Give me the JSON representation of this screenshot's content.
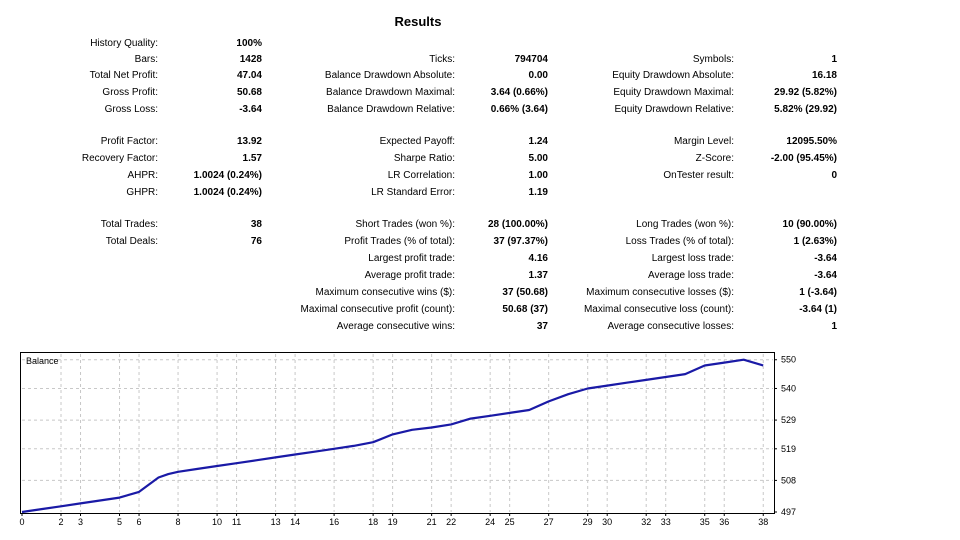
{
  "report": {
    "title": "Results",
    "rows": [
      {
        "top": 35,
        "cells": [
          {
            "label": "History Quality:",
            "value": "100%"
          },
          null,
          null
        ]
      },
      {
        "top": 51,
        "cells": [
          {
            "label": "Bars:",
            "value": "1428"
          },
          {
            "label": "Ticks:",
            "value": "794704"
          },
          {
            "label": "Symbols:",
            "value": "1"
          }
        ]
      },
      {
        "top": 67,
        "cells": [
          {
            "label": "Total Net Profit:",
            "value": "47.04"
          },
          {
            "label": "Balance Drawdown Absolute:",
            "value": "0.00"
          },
          {
            "label": "Equity Drawdown Absolute:",
            "value": "16.18"
          }
        ]
      },
      {
        "top": 84,
        "cells": [
          {
            "label": "Gross Profit:",
            "value": "50.68"
          },
          {
            "label": "Balance Drawdown Maximal:",
            "value": "3.64 (0.66%)"
          },
          {
            "label": "Equity Drawdown Maximal:",
            "value": "29.92 (5.82%)"
          }
        ]
      },
      {
        "top": 101,
        "cells": [
          {
            "label": "Gross Loss:",
            "value": "-3.64"
          },
          {
            "label": "Balance Drawdown Relative:",
            "value": "0.66% (3.64)"
          },
          {
            "label": "Equity Drawdown Relative:",
            "value": "5.82% (29.92)"
          }
        ]
      },
      {
        "top": 133,
        "cells": [
          {
            "label": "Profit Factor:",
            "value": "13.92"
          },
          {
            "label": "Expected Payoff:",
            "value": "1.24"
          },
          {
            "label": "Margin Level:",
            "value": "12095.50%"
          }
        ]
      },
      {
        "top": 150,
        "cells": [
          {
            "label": "Recovery Factor:",
            "value": "1.57"
          },
          {
            "label": "Sharpe Ratio:",
            "value": "5.00"
          },
          {
            "label": "Z-Score:",
            "value": "-2.00 (95.45%)"
          }
        ]
      },
      {
        "top": 167,
        "cells": [
          {
            "label": "AHPR:",
            "value": "1.0024 (0.24%)"
          },
          {
            "label": "LR Correlation:",
            "value": "1.00"
          },
          {
            "label": "OnTester result:",
            "value": "0"
          }
        ]
      },
      {
        "top": 184,
        "cells": [
          {
            "label": "GHPR:",
            "value": "1.0024 (0.24%)"
          },
          {
            "label": "LR Standard Error:",
            "value": "1.19"
          },
          null
        ]
      },
      {
        "top": 216,
        "cells": [
          {
            "label": "Total Trades:",
            "value": "38"
          },
          {
            "label": "Short Trades (won %):",
            "value": "28 (100.00%)"
          },
          {
            "label": "Long Trades (won %):",
            "value": "10 (90.00%)"
          }
        ]
      },
      {
        "top": 233,
        "cells": [
          {
            "label": "Total Deals:",
            "value": "76"
          },
          {
            "label": "Profit Trades (% of total):",
            "value": "37 (97.37%)"
          },
          {
            "label": "Loss Trades (% of total):",
            "value": "1 (2.63%)"
          }
        ]
      },
      {
        "top": 250,
        "cells": [
          null,
          {
            "label": "Largest profit trade:",
            "value": "4.16"
          },
          {
            "label": "Largest loss trade:",
            "value": "-3.64"
          }
        ]
      },
      {
        "top": 267,
        "cells": [
          null,
          {
            "label": "Average profit trade:",
            "value": "1.37"
          },
          {
            "label": "Average loss trade:",
            "value": "-3.64"
          }
        ]
      },
      {
        "top": 284,
        "cells": [
          null,
          {
            "label": "Maximum consecutive wins ($):",
            "value": "37 (50.68)"
          },
          {
            "label": "Maximum consecutive losses ($):",
            "value": "1 (-3.64)"
          }
        ]
      },
      {
        "top": 301,
        "cells": [
          null,
          {
            "label": "Maximal consecutive profit (count):",
            "value": "50.68 (37)"
          },
          {
            "label": "Maximal consecutive loss (count):",
            "value": "-3.64 (1)"
          }
        ]
      },
      {
        "top": 318,
        "cells": [
          null,
          {
            "label": "Average consecutive wins:",
            "value": "37"
          },
          {
            "label": "Average consecutive losses:",
            "value": "1"
          }
        ]
      }
    ]
  },
  "chart_data": {
    "type": "line",
    "title": "Balance",
    "line_color": "#1a1aa6",
    "grid": true,
    "xlim": [
      0,
      38.5
    ],
    "ylim": [
      497,
      552
    ],
    "x_ticks": [
      0,
      2,
      3,
      5,
      6,
      8,
      10,
      11,
      13,
      14,
      16,
      18,
      19,
      21,
      22,
      24,
      25,
      27,
      29,
      30,
      32,
      33,
      35,
      36,
      38
    ],
    "y_ticks": [
      497,
      508,
      519,
      529,
      540,
      550
    ],
    "series": [
      {
        "x": [
          0,
          1,
          2,
          3,
          4,
          5,
          6,
          7,
          7.5,
          8,
          9,
          10,
          11,
          12,
          13,
          14,
          15,
          16,
          17,
          18,
          19,
          20,
          21,
          22,
          23,
          24,
          25,
          26,
          27,
          28,
          29,
          30,
          31,
          32,
          33,
          34,
          35,
          36,
          37,
          38
        ],
        "y": [
          497.0,
          498.0,
          499.0,
          500.0,
          501.0,
          502.0,
          504.0,
          509.0,
          510.2,
          511.0,
          512.0,
          513.0,
          514.0,
          515.0,
          516.0,
          517.0,
          518.0,
          519.0,
          520.0,
          521.3,
          524.0,
          525.6,
          526.4,
          527.5,
          529.5,
          530.5,
          531.5,
          532.5,
          535.5,
          538.0,
          540.0,
          541.0,
          542.0,
          543.0,
          544.0,
          545.0,
          548.0,
          549.0,
          550.0,
          548.0
        ]
      }
    ]
  }
}
